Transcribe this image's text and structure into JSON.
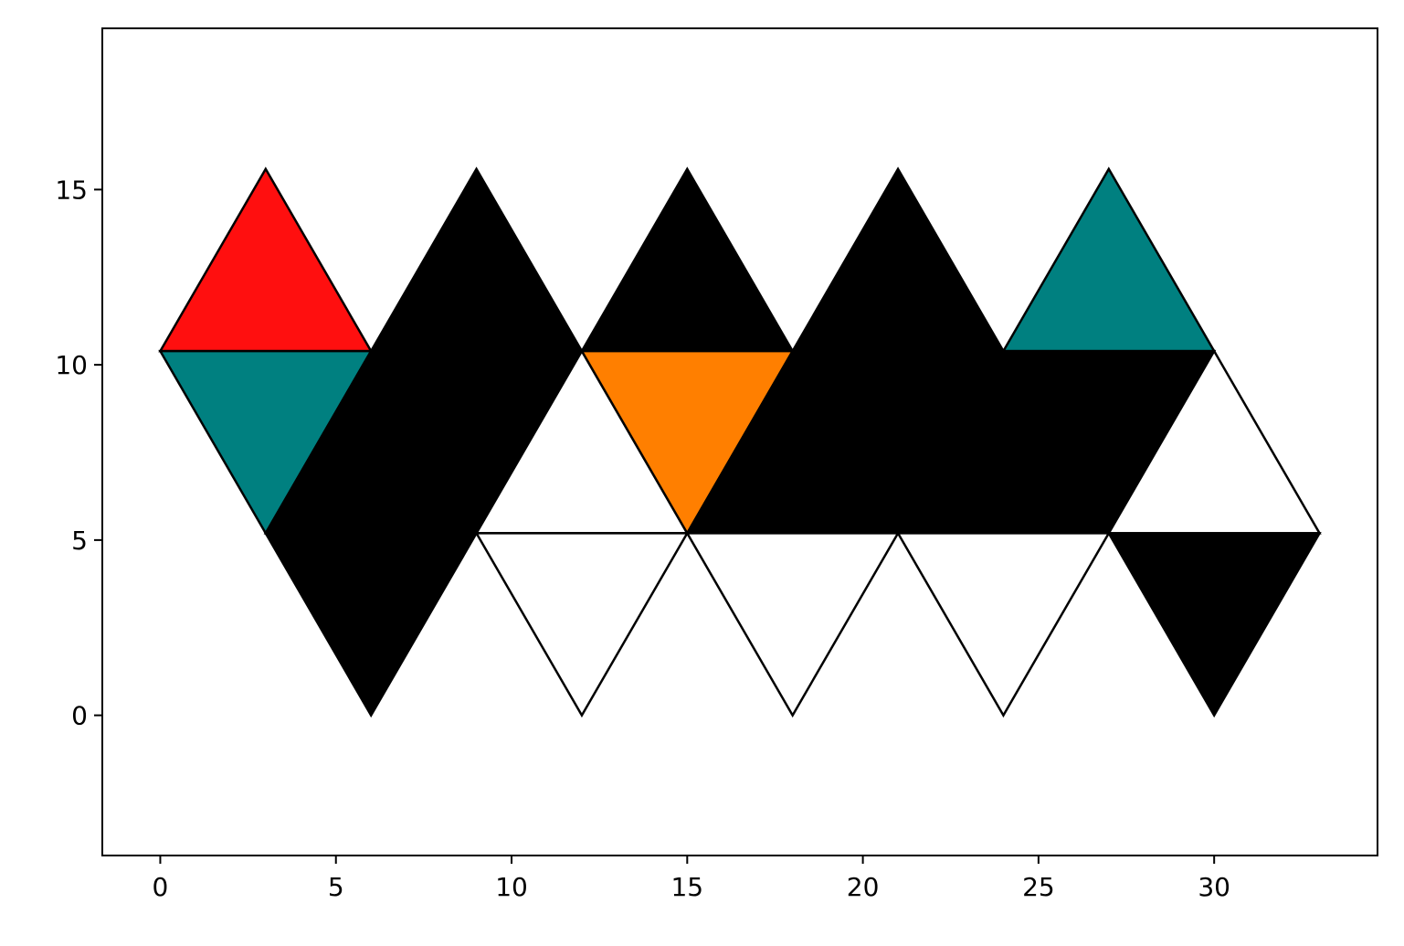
{
  "chart_data": {
    "type": "polygon",
    "title": "",
    "xlabel": "",
    "ylabel": "",
    "xlim": [
      -1.65,
      34.65
    ],
    "ylim": [
      -4.0,
      19.6
    ],
    "xticks": [
      0,
      5,
      10,
      15,
      20,
      25,
      30
    ],
    "yticks": [
      0,
      5,
      10,
      15
    ],
    "xtick_labels": [
      "0",
      "5",
      "10",
      "15",
      "20",
      "25",
      "30"
    ],
    "ytick_labels": [
      "0",
      "5",
      "10",
      "15"
    ],
    "grid": false,
    "legend": null,
    "colors": {
      "red": "#ff0f0f",
      "teal": "#008080",
      "orange": "#ff7f00",
      "black": "#000000",
      "white": "#ffffff",
      "edge": "#000000"
    },
    "triangles": [
      {
        "vertices": [
          [
            0,
            10.392
          ],
          [
            6,
            10.392
          ],
          [
            3,
            15.588
          ]
        ],
        "fill": "red"
      },
      {
        "vertices": [
          [
            0,
            10.392
          ],
          [
            6,
            10.392
          ],
          [
            3,
            5.196
          ]
        ],
        "fill": "teal"
      },
      {
        "vertices": [
          [
            6,
            10.392
          ],
          [
            12,
            10.392
          ],
          [
            9,
            15.588
          ]
        ],
        "fill": "black"
      },
      {
        "vertices": [
          [
            3,
            5.196
          ],
          [
            9,
            5.196
          ],
          [
            6,
            10.392
          ]
        ],
        "fill": "black"
      },
      {
        "vertices": [
          [
            6,
            10.392
          ],
          [
            12,
            10.392
          ],
          [
            9,
            5.196
          ]
        ],
        "fill": "black"
      },
      {
        "vertices": [
          [
            3,
            5.196
          ],
          [
            9,
            5.196
          ],
          [
            6,
            0
          ]
        ],
        "fill": "black"
      },
      {
        "vertices": [
          [
            9,
            5.196
          ],
          [
            15,
            5.196
          ],
          [
            12,
            10.392
          ]
        ],
        "fill": "white"
      },
      {
        "vertices": [
          [
            9,
            5.196
          ],
          [
            15,
            5.196
          ],
          [
            12,
            0
          ]
        ],
        "fill": "white"
      },
      {
        "vertices": [
          [
            12,
            10.392
          ],
          [
            18,
            10.392
          ],
          [
            15,
            15.588
          ]
        ],
        "fill": "black"
      },
      {
        "vertices": [
          [
            12,
            10.392
          ],
          [
            18,
            10.392
          ],
          [
            15,
            5.196
          ]
        ],
        "fill": "orange"
      },
      {
        "vertices": [
          [
            15,
            5.196
          ],
          [
            21,
            5.196
          ],
          [
            18,
            10.392
          ]
        ],
        "fill": "black"
      },
      {
        "vertices": [
          [
            15,
            5.196
          ],
          [
            21,
            5.196
          ],
          [
            18,
            0
          ]
        ],
        "fill": "white"
      },
      {
        "vertices": [
          [
            18,
            10.392
          ],
          [
            24,
            10.392
          ],
          [
            21,
            15.588
          ]
        ],
        "fill": "black"
      },
      {
        "vertices": [
          [
            18,
            10.392
          ],
          [
            24,
            10.392
          ],
          [
            21,
            5.196
          ]
        ],
        "fill": "black"
      },
      {
        "vertices": [
          [
            21,
            5.196
          ],
          [
            27,
            5.196
          ],
          [
            24,
            10.392
          ]
        ],
        "fill": "black"
      },
      {
        "vertices": [
          [
            21,
            5.196
          ],
          [
            27,
            5.196
          ],
          [
            24,
            0
          ]
        ],
        "fill": "white"
      },
      {
        "vertices": [
          [
            24,
            10.392
          ],
          [
            30,
            10.392
          ],
          [
            27,
            15.588
          ]
        ],
        "fill": "teal"
      },
      {
        "vertices": [
          [
            24,
            10.392
          ],
          [
            30,
            10.392
          ],
          [
            27,
            5.196
          ]
        ],
        "fill": "black"
      },
      {
        "vertices": [
          [
            27,
            5.196
          ],
          [
            33,
            5.196
          ],
          [
            30,
            10.392
          ]
        ],
        "fill": "white"
      },
      {
        "vertices": [
          [
            27,
            5.196
          ],
          [
            33,
            5.196
          ],
          [
            30,
            0
          ]
        ],
        "fill": "black"
      }
    ]
  }
}
